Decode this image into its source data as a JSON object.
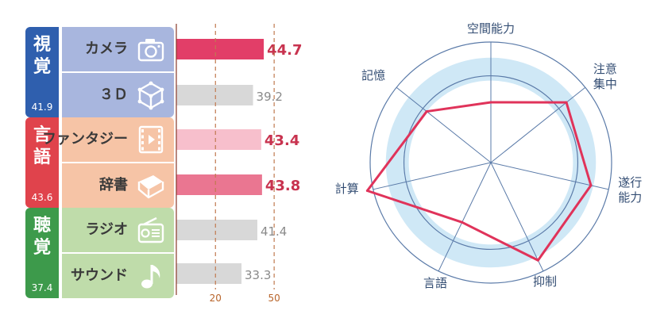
{
  "groups": [
    {
      "name_top": "視",
      "name_bottom": "覚",
      "score": "41.9",
      "side_color": "#2f5fae",
      "bg_color": "#a8b6de",
      "items": [
        {
          "label": "カメラ",
          "icon": "camera-icon"
        },
        {
          "label": "３Ｄ",
          "icon": "cube-icon"
        }
      ]
    },
    {
      "name_top": "言",
      "name_bottom": "語",
      "score": "43.6",
      "side_color": "#e0434c",
      "bg_color": "#f6c4a6",
      "items": [
        {
          "label": "ファンタジー",
          "icon": "film-icon"
        },
        {
          "label": "辞書",
          "icon": "book-icon"
        }
      ]
    },
    {
      "name_top": "聴",
      "name_bottom": "覚",
      "score": "37.4",
      "side_color": "#3d9a4b",
      "bg_color": "#bfdcaa",
      "items": [
        {
          "label": "ラジオ",
          "icon": "radio-icon"
        },
        {
          "label": "サウンド",
          "icon": "music-note-icon"
        }
      ]
    }
  ],
  "chart_data": [
    {
      "type": "bar",
      "categories": [
        "カメラ",
        "３Ｄ",
        "ファンタジー",
        "辞書",
        "ラジオ",
        "サウンド"
      ],
      "values": [
        44.7,
        39.2,
        43.4,
        43.8,
        41.4,
        33.3
      ],
      "value_labels": [
        "44.7",
        "39.2",
        "43.4",
        "43.8",
        "41.4",
        "33.3"
      ],
      "bar_colors": [
        "#e23e68",
        "#d8d8d8",
        "#f7bfcc",
        "#ea7691",
        "#d8d8d8",
        "#d8d8d8"
      ],
      "label_colors": [
        "#c8334f",
        "#8a8a8a",
        "#c8334f",
        "#c8334f",
        "#8a8a8a",
        "#8a8a8a"
      ],
      "xticks": [
        20,
        50
      ],
      "xlim": [
        0,
        54
      ],
      "reference_lines": [
        20,
        50
      ]
    },
    {
      "type": "radar",
      "axes": [
        "空間能力",
        "注意集中",
        "遂行能力",
        "抑制",
        "言語",
        "計算",
        "記憶"
      ],
      "values": [
        0.5,
        0.8,
        0.85,
        0.9,
        0.55,
        1.05,
        0.68
      ],
      "rlim": [
        0,
        1
      ],
      "band": [
        0.68,
        0.87
      ]
    }
  ],
  "colors": {
    "accent": "#e0335a",
    "band": "#cfe8f6",
    "axis": "#5a7aa8",
    "text": "#334d73"
  }
}
